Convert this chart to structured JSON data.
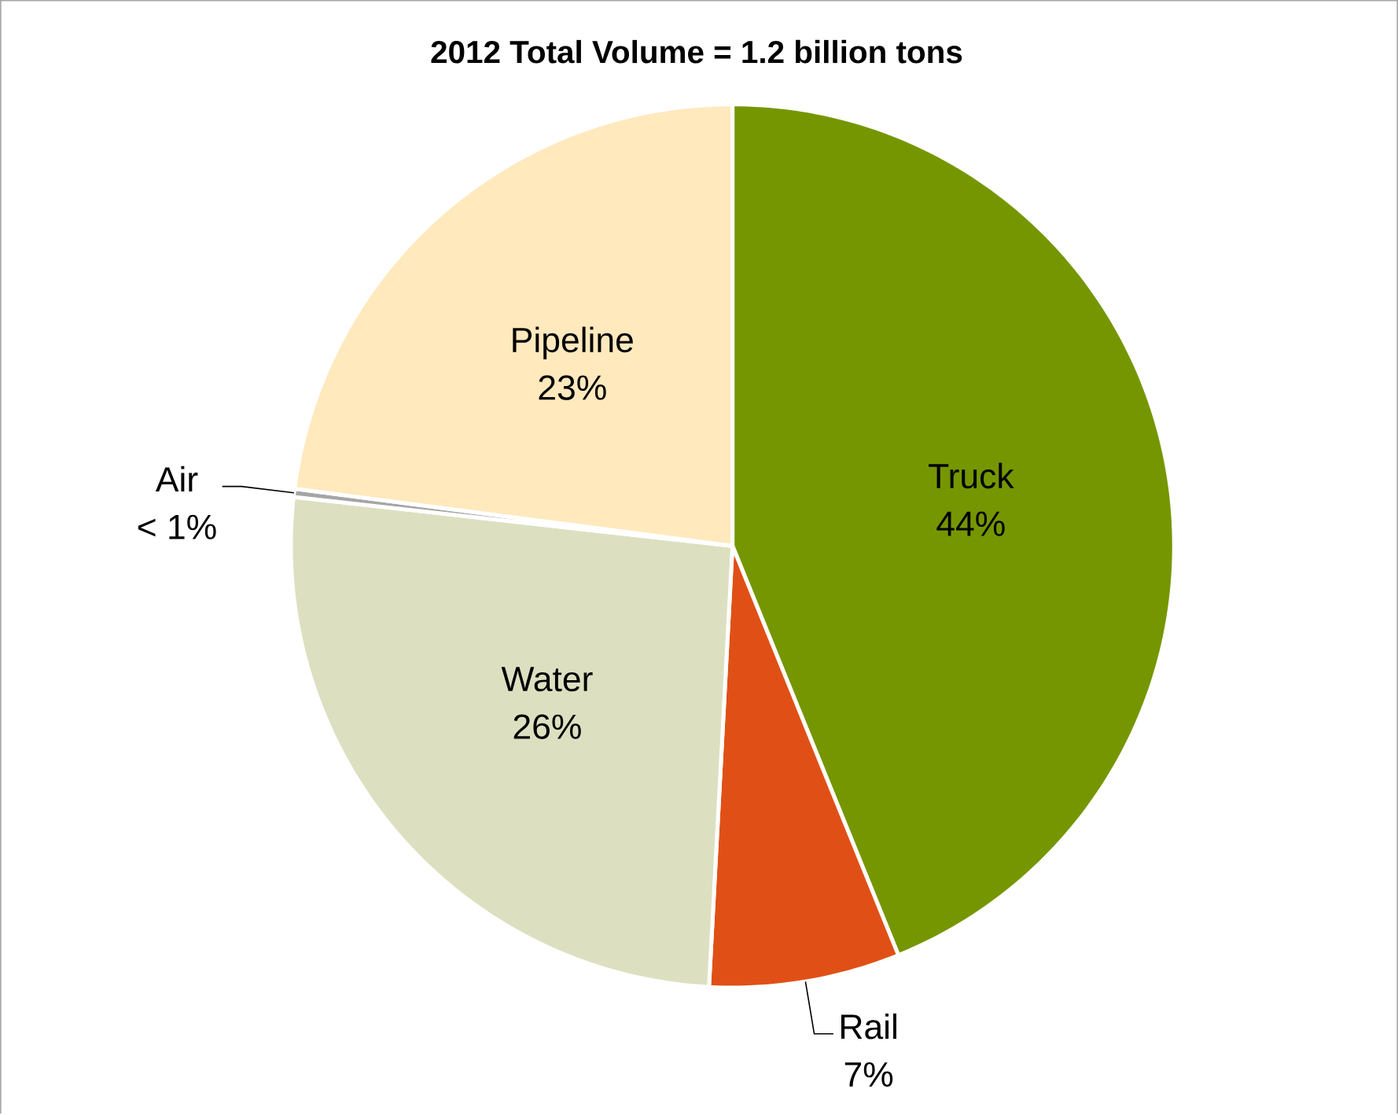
{
  "chart_data": {
    "type": "pie",
    "title": "2012 Total Volume = 1.2 billion tons",
    "categories": [
      "Truck",
      "Rail",
      "Water",
      "Air",
      "Pipeline"
    ],
    "values": [
      44,
      7,
      26,
      0.3,
      23
    ],
    "colors": [
      "#769600",
      "#e05016",
      "#dde0c0",
      "#a5a5a5",
      "#ffe9bd"
    ],
    "value_labels": [
      "44%",
      "7%",
      "26%",
      "< 1%",
      "23%"
    ]
  }
}
